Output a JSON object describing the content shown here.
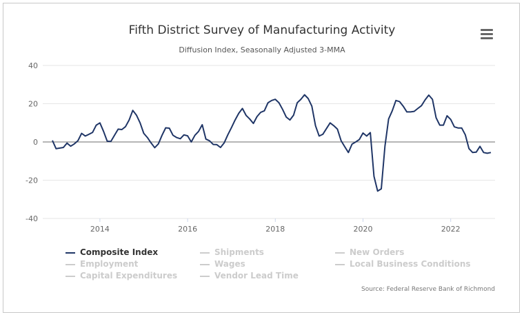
{
  "chart_data": {
    "type": "line",
    "title": "Fifth District Survey of Manufacturing Activity",
    "subtitle": "Diffusion Index, Seasonally Adjusted 3-MMA",
    "xlabel": "",
    "ylabel": "",
    "ylim": [
      -40,
      40
    ],
    "yticks": [
      "40",
      "20",
      "0",
      "-20",
      "-40"
    ],
    "xticks": [
      "2014",
      "2016",
      "2018",
      "2020",
      "2022"
    ],
    "grid": "horizontal",
    "legend_position": "bottom",
    "line_color": "#1f3566",
    "x": [
      "2012-12",
      "2013-01",
      "2013-02",
      "2013-03",
      "2013-04",
      "2013-05",
      "2013-06",
      "2013-07",
      "2013-08",
      "2013-09",
      "2013-10",
      "2013-11",
      "2013-12",
      "2014-01",
      "2014-02",
      "2014-03",
      "2014-04",
      "2014-05",
      "2014-06",
      "2014-07",
      "2014-08",
      "2014-09",
      "2014-10",
      "2014-11",
      "2014-12",
      "2015-01",
      "2015-02",
      "2015-03",
      "2015-04",
      "2015-05",
      "2015-06",
      "2015-07",
      "2015-08",
      "2015-09",
      "2015-10",
      "2015-11",
      "2015-12",
      "2016-01",
      "2016-02",
      "2016-03",
      "2016-04",
      "2016-05",
      "2016-06",
      "2016-07",
      "2016-08",
      "2016-09",
      "2016-10",
      "2016-11",
      "2016-12",
      "2017-01",
      "2017-02",
      "2017-03",
      "2017-04",
      "2017-05",
      "2017-06",
      "2017-07",
      "2017-08",
      "2017-09",
      "2017-10",
      "2017-11",
      "2017-12",
      "2018-01",
      "2018-02",
      "2018-03",
      "2018-04",
      "2018-05",
      "2018-06",
      "2018-07",
      "2018-08",
      "2018-09",
      "2018-10",
      "2018-11",
      "2018-12",
      "2019-01",
      "2019-02",
      "2019-03",
      "2019-04",
      "2019-05",
      "2019-06",
      "2019-07",
      "2019-08",
      "2019-09",
      "2019-10",
      "2019-11",
      "2019-12",
      "2020-01",
      "2020-02",
      "2020-03",
      "2020-04",
      "2020-05",
      "2020-06",
      "2020-07",
      "2020-08",
      "2020-09",
      "2020-10",
      "2020-11",
      "2020-12",
      "2021-01",
      "2021-02",
      "2021-03",
      "2021-04",
      "2021-05",
      "2021-06",
      "2021-07",
      "2021-08",
      "2021-09",
      "2021-10",
      "2021-11",
      "2021-12",
      "2022-01",
      "2022-02",
      "2022-03",
      "2022-04",
      "2022-05",
      "2022-06",
      "2022-07",
      "2022-08",
      "2022-09",
      "2022-10",
      "2022-11",
      "2022-12"
    ],
    "series": [
      {
        "name": "Composite Index",
        "visible": true,
        "values": [
          0.8,
          -3.5,
          -3.2,
          -2.9,
          -0.6,
          -2.2,
          -1,
          0.7,
          4.5,
          3.1,
          4,
          5,
          8.8,
          10,
          5.5,
          0.4,
          0.3,
          3.5,
          6.7,
          6.5,
          8,
          11.5,
          16.5,
          14,
          10,
          4.5,
          2.3,
          -0.5,
          -3,
          -1,
          3.5,
          7.4,
          7.2,
          3.5,
          2.3,
          1.7,
          3.7,
          3.2,
          0,
          3.5,
          5.5,
          9,
          1.5,
          0.6,
          -1.3,
          -1.4,
          -2.9,
          -0.5,
          3.7,
          7.5,
          11.5,
          15,
          17.5,
          13.9,
          12,
          9.7,
          13.3,
          15.5,
          16.3,
          20.5,
          21.7,
          22.3,
          20.5,
          17,
          13,
          11.5,
          14,
          20.5,
          22.3,
          24.7,
          22.7,
          18.7,
          8.5,
          3.1,
          4,
          7,
          10,
          8.5,
          6.7,
          0.7,
          -2.5,
          -5.5,
          -1.1,
          0,
          1.3,
          4.7,
          3.1,
          4.9,
          -17.9,
          -25.7,
          -24.5,
          -2.3,
          12,
          16.3,
          21.7,
          21.1,
          18.7,
          15.7,
          15.7,
          16,
          17.5,
          19,
          22,
          24.5,
          22.3,
          12.7,
          8.8,
          8.8,
          13.7,
          11.8,
          7.9,
          7.3,
          7.3,
          3.7,
          -3.5,
          -5.5,
          -5.3,
          -2.3,
          -5.5,
          -5.9,
          -5.5
        ]
      }
    ]
  },
  "legend": [
    {
      "label": "Composite Index",
      "active": true
    },
    {
      "label": "Shipments",
      "active": false
    },
    {
      "label": "New Orders",
      "active": false
    },
    {
      "label": "Employment",
      "active": false
    },
    {
      "label": "Wages",
      "active": false
    },
    {
      "label": "Local Business Conditions",
      "active": false
    },
    {
      "label": "Capital Expenditures",
      "active": false
    },
    {
      "label": "Vendor Lead Time",
      "active": false
    }
  ],
  "source": "Source: Federal Reserve Bank of Richmond",
  "menu_icon": "hamburger-menu-icon"
}
